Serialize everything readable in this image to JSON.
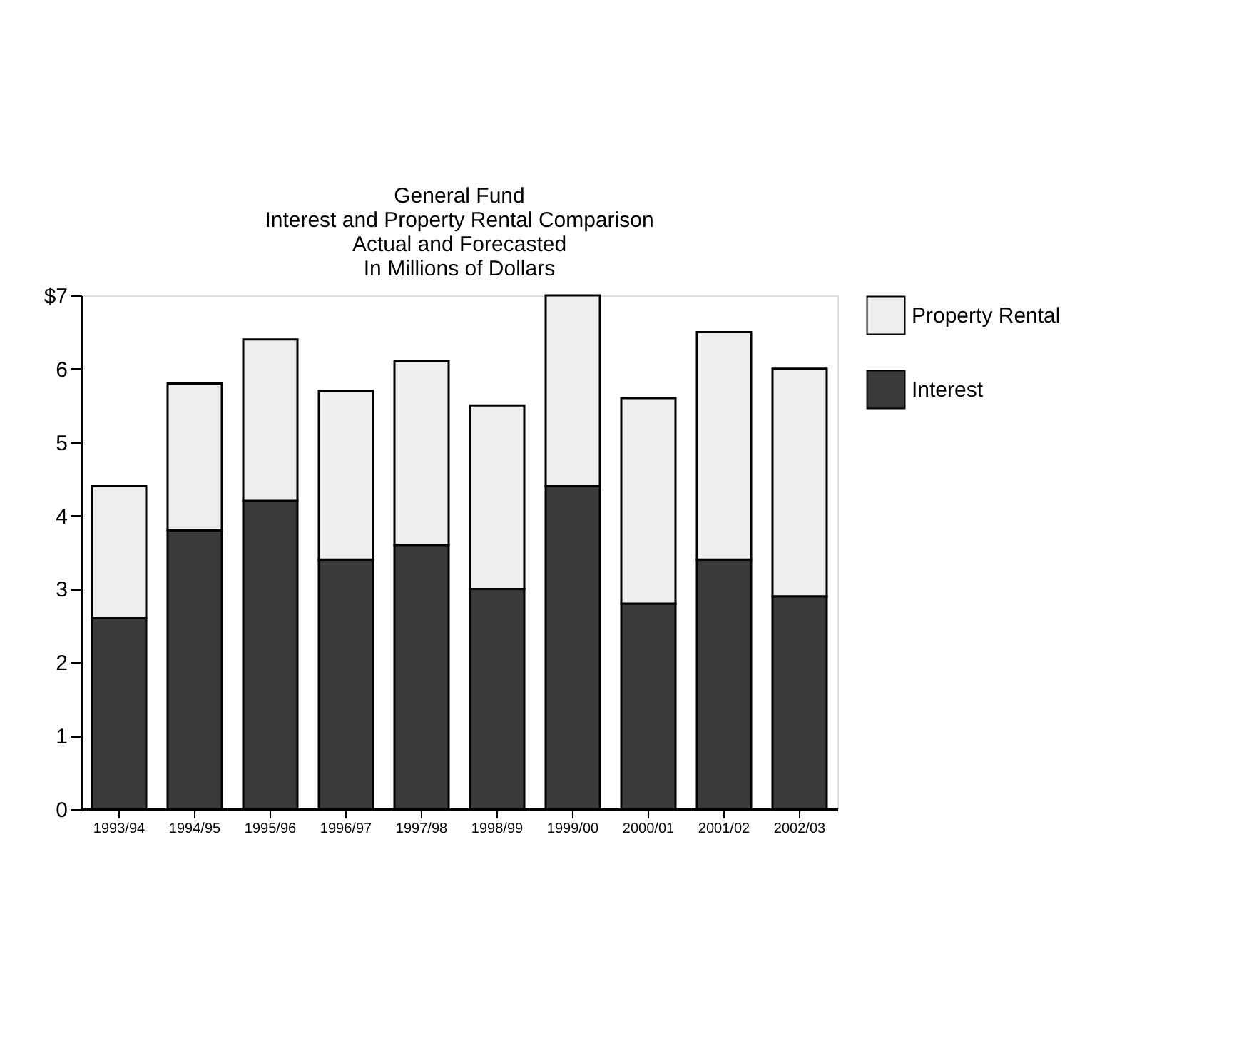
{
  "chart_data": {
    "type": "bar",
    "title": [
      "General Fund",
      "Interest and Property Rental Comparison",
      "Actual and Forecasted",
      "In Millions of Dollars"
    ],
    "categories": [
      "1993/94",
      "1994/95",
      "1995/96",
      "1996/97",
      "1997/98",
      "1998/99",
      "1999/00",
      "2000/01",
      "2001/02",
      "2002/03"
    ],
    "stacked": true,
    "series": [
      {
        "name": "Interest",
        "color": "#3a3a3a",
        "values": [
          2.6,
          3.8,
          4.2,
          3.4,
          3.6,
          3.0,
          4.4,
          2.8,
          3.4,
          2.9
        ]
      },
      {
        "name": "Property Rental",
        "color": "#eeeeee",
        "values": [
          1.8,
          2.0,
          2.2,
          2.3,
          2.5,
          2.5,
          2.6,
          2.8,
          3.1,
          3.1
        ]
      }
    ],
    "ylim": [
      0,
      7
    ],
    "yticks": [
      0,
      1,
      2,
      3,
      4,
      5,
      6,
      {
        "value": 7,
        "label": "$7"
      }
    ],
    "grid": false,
    "legend": "top right"
  }
}
